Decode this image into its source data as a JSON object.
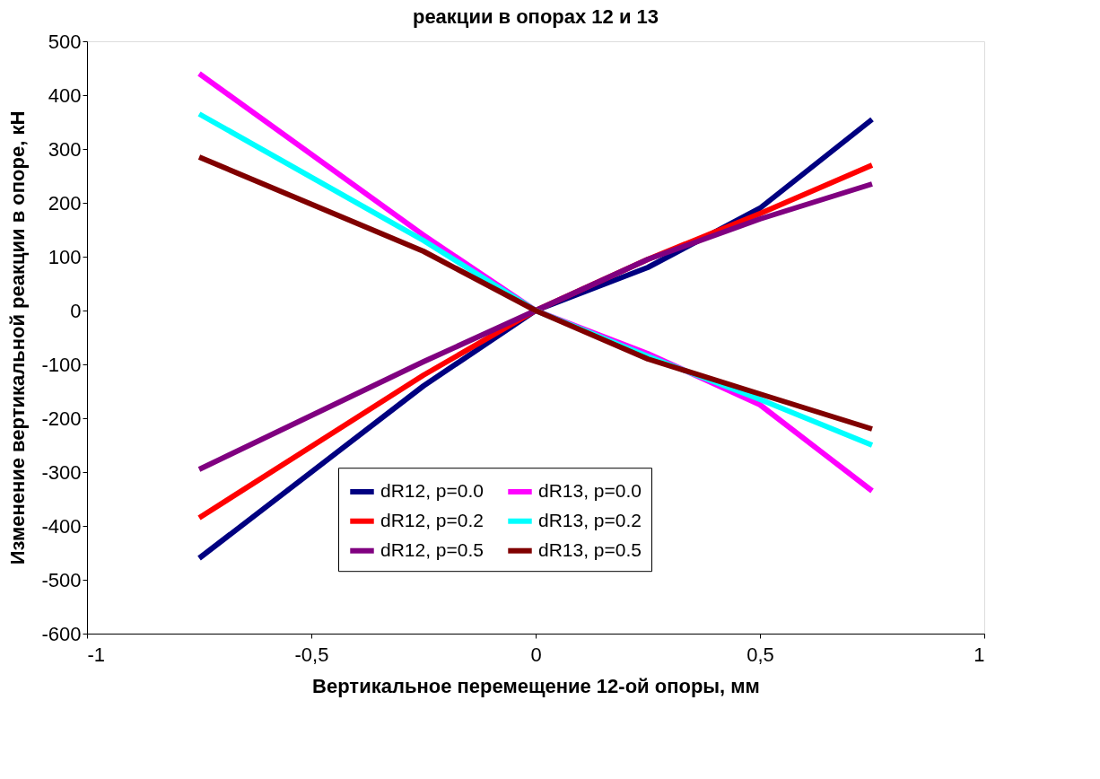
{
  "chart_data": {
    "type": "line",
    "title": "реакции в опорах 12 и 13",
    "xlabel": "Вертикальное перемещение 12-ой опоры, мм",
    "ylabel": "Изменение вертикальной   реакции в опоре, кН",
    "x": [
      -0.75,
      -0.25,
      0,
      0.25,
      0.5,
      0.75
    ],
    "series": [
      {
        "name": "dR12, p=0.0",
        "color": "#000080",
        "values": [
          -460,
          -140,
          0,
          80,
          190,
          355
        ]
      },
      {
        "name": "dR12, p=0.2",
        "color": "#ff0000",
        "values": [
          -385,
          -120,
          0,
          95,
          180,
          270
        ]
      },
      {
        "name": "dR12, p=0.5",
        "color": "#800080",
        "values": [
          -295,
          -95,
          0,
          95,
          170,
          235
        ]
      },
      {
        "name": "dR13, p=0.0",
        "color": "#ff00ff",
        "values": [
          440,
          140,
          0,
          -80,
          -175,
          -335
        ]
      },
      {
        "name": "dR13, p=0.2",
        "color": "#00ffff",
        "values": [
          365,
          130,
          0,
          -85,
          -165,
          -250
        ]
      },
      {
        "name": "dR13, p=0.5",
        "color": "#800000",
        "values": [
          285,
          110,
          0,
          -90,
          -155,
          -220
        ]
      }
    ],
    "xlim": [
      -1,
      1
    ],
    "xticks": [
      -1,
      {
        "value": -0.5,
        "label": "-0,5"
      },
      0,
      {
        "value": 0.5,
        "label": "0,5"
      },
      1
    ],
    "ylim": [
      -600,
      500
    ],
    "yticks": [
      -600,
      -500,
      -400,
      -300,
      -200,
      -100,
      0,
      100,
      200,
      300,
      400,
      500
    ],
    "grid": false,
    "legend": "bottom right",
    "marker": "none",
    "line_style": "solid"
  }
}
